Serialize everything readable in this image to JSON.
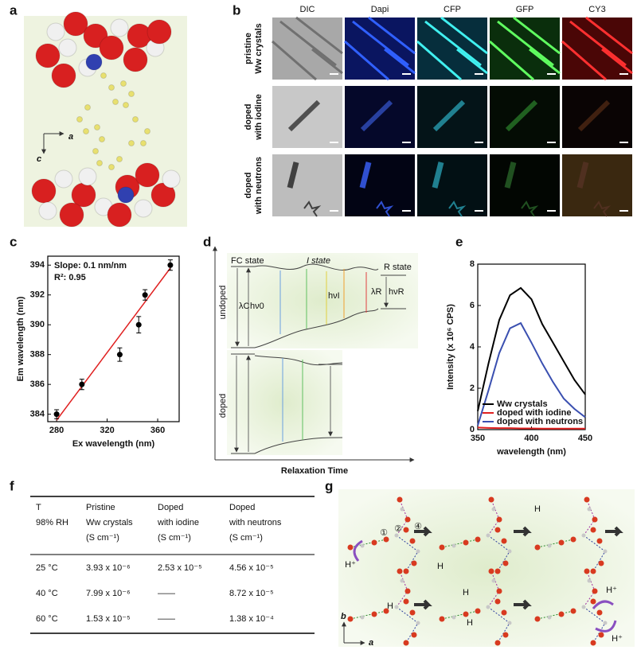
{
  "panel_labels": [
    "a",
    "b",
    "c",
    "d",
    "e",
    "f",
    "g"
  ],
  "panel_a": {
    "axis_a": "a",
    "axis_c": "c"
  },
  "panel_b": {
    "columns": [
      "DIC",
      "Dapi",
      "CFP",
      "GFP",
      "CY3"
    ],
    "rows": [
      [
        "pristine",
        "Ww crystals"
      ],
      [
        "doped",
        "with iodine"
      ],
      [
        "doped",
        "with neutrons"
      ]
    ]
  },
  "chart_data": [
    {
      "type": "scatter",
      "x": [
        280,
        300,
        330,
        345,
        350,
        370
      ],
      "values": [
        384,
        386,
        388,
        390,
        392,
        394
      ],
      "errors": [
        0.3,
        0.35,
        0.45,
        0.55,
        0.35,
        0.35
      ],
      "color": "#000000",
      "fit_line": {
        "x": [
          280,
          370
        ],
        "y": [
          383.6,
          393.8
        ],
        "color": "#e02020"
      },
      "annotations": [
        "Slope: 0.1 nm/nm",
        "R²: 0.95"
      ],
      "x_label": "Ex wavelength (nm)",
      "y_label": "Em wavelength (nm)",
      "xlim": [
        273,
        377
      ],
      "ylim": [
        383.5,
        394.6
      ],
      "xticks": [
        280,
        320,
        360
      ],
      "yticks": [
        384,
        386,
        388,
        390,
        392,
        394
      ]
    },
    {
      "type": "line",
      "x": [
        350,
        360,
        370,
        380,
        390,
        400,
        410,
        420,
        430,
        440,
        450
      ],
      "series": [
        {
          "name": "Ww crystals",
          "color": "#000000",
          "values": [
            0.9,
            3.2,
            5.3,
            6.5,
            6.85,
            6.3,
            5.1,
            4.2,
            3.3,
            2.4,
            1.7
          ]
        },
        {
          "name": "doped with iodine",
          "color": "#e02020",
          "values": [
            0.1,
            0.08,
            0.07,
            0.07,
            0.06,
            0.06,
            0.05,
            0.05,
            0.05,
            0.05,
            0.05
          ]
        },
        {
          "name": "doped with neutrons",
          "color": "#3a4fb0",
          "values": [
            0.2,
            1.9,
            3.7,
            4.9,
            5.15,
            4.2,
            3.2,
            2.3,
            1.5,
            1.0,
            0.6
          ]
        }
      ],
      "legend": "lower left",
      "x_label": "wavelength (nm)",
      "y_label": "Intensity (x 10⁶ CPS)",
      "xlim": [
        350,
        450
      ],
      "ylim": [
        0,
        8
      ],
      "xticks": [
        350,
        400,
        450
      ],
      "yticks": [
        0,
        2,
        4,
        6,
        8
      ]
    }
  ],
  "panel_d": {
    "fc_state": "FC state",
    "i_state": "I state",
    "r_state": "R state",
    "lambda_c": "λC",
    "hv_0": "hν0",
    "hv_i": "hνI",
    "lambda_r": "λR",
    "hv_r": "hνR",
    "undoped": "undoped",
    "doped": "doped",
    "x_label": "Relaxation Time"
  },
  "table": {
    "header": [
      [
        "T",
        "98% RH"
      ],
      [
        "Pristine",
        "Ww crystals",
        "(S cm⁻¹)"
      ],
      [
        "Doped",
        "with iodine",
        "(S cm⁻¹)"
      ],
      [
        "Doped",
        "with neutrons",
        "(S cm⁻¹)"
      ]
    ],
    "rows": [
      [
        "25 °C",
        "3.93 x 10⁻⁶",
        "2.53 x 10⁻⁵",
        "4.56 x 10⁻⁵"
      ],
      [
        "40 °C",
        "7.99 x 10⁻⁶",
        "——",
        "8.72 x 10⁻⁵"
      ],
      [
        "60 °C",
        "1.53 x 10⁻⁵",
        "——",
        "1.38 x 10⁻⁴"
      ]
    ]
  },
  "panel_g": {
    "labels": [
      "H⁺",
      "①",
      "②",
      "④",
      "H",
      "H",
      "H",
      "H",
      "H",
      "H⁺",
      "H⁺"
    ],
    "axis_b": "b",
    "axis_a": "a"
  }
}
